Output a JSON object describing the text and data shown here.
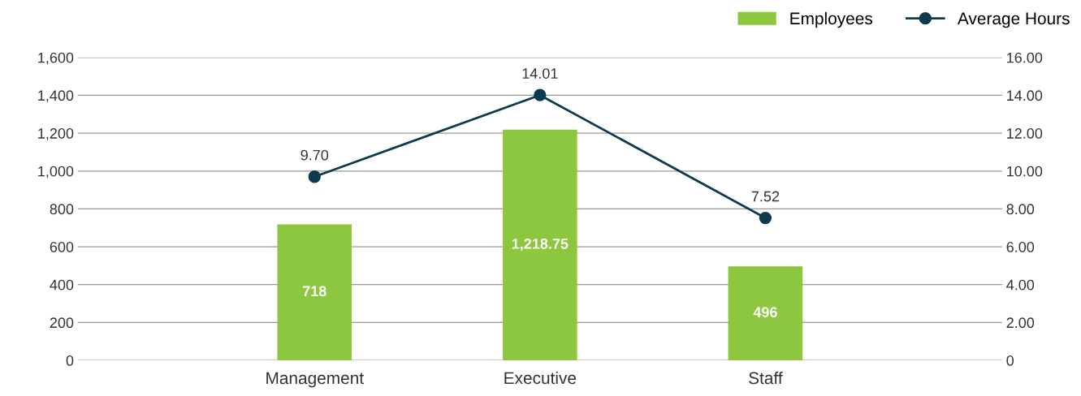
{
  "chart_data": {
    "type": "bar",
    "categories": [
      "Management",
      "Executive",
      "Staff"
    ],
    "series": [
      {
        "name": "Employees",
        "color": "#8dc63f",
        "values": [
          718,
          1218.75,
          496
        ],
        "value_labels": [
          "718",
          "1,218.75",
          "496"
        ]
      },
      {
        "name": "Average Hours",
        "type": "line",
        "axis": "y2",
        "color": "#0d3a4f",
        "values": [
          9.7,
          14.01,
          7.52
        ],
        "value_labels": [
          "9.70",
          "14.01",
          "7.52"
        ],
        "marker": "circle"
      }
    ],
    "ylim": [
      0,
      1600
    ],
    "yticks": [
      0,
      200,
      400,
      600,
      800,
      {
        "value": 1000,
        "label": "1,000"
      },
      {
        "value": 1200,
        "label": "1,200"
      },
      {
        "value": 1400,
        "label": "1,400"
      },
      {
        "value": 1600,
        "label": "1,600"
      }
    ],
    "y2lim": [
      0,
      16
    ],
    "y2ticks": [
      0,
      {
        "value": 2,
        "label": "2.00"
      },
      {
        "value": 4,
        "label": "4.00"
      },
      {
        "value": 6,
        "label": "6.00"
      },
      {
        "value": 8,
        "label": "8.00"
      },
      {
        "value": 10,
        "label": "10.00"
      },
      {
        "value": 12,
        "label": "12.00"
      },
      {
        "value": 14,
        "label": "14.00"
      },
      {
        "value": 16,
        "label": "16.00"
      }
    ],
    "grid": "y",
    "legend": "top right"
  }
}
